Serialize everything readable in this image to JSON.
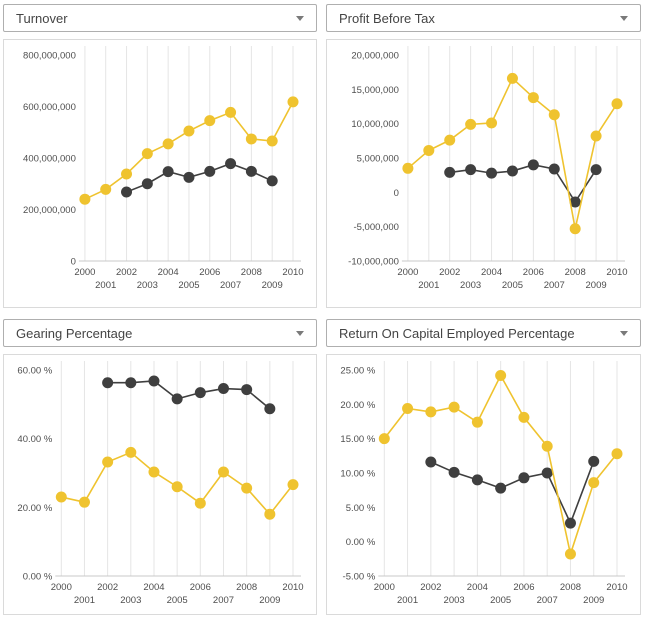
{
  "colors": {
    "series_yellow": "#EFC32F",
    "series_dark": "#3F3F3F",
    "gridline": "#E5E5E5",
    "axis_line": "#C8C8C8",
    "panel_border": "#DADADA",
    "dropdown_border": "#AFAFAF",
    "label_text": "#4E4E4E"
  },
  "panels": [
    {
      "dropdown_label": "Turnover"
    },
    {
      "dropdown_label": "Profit Before Tax"
    },
    {
      "dropdown_label": "Gearing Percentage"
    },
    {
      "dropdown_label": "Return On Capital Employed Percentage"
    }
  ],
  "chart_data": [
    {
      "type": "line",
      "title": "Turnover",
      "x": [
        2000,
        2001,
        2002,
        2003,
        2004,
        2005,
        2006,
        2007,
        2008,
        2009,
        2010
      ],
      "xtick_labels": [
        "2000",
        "2001",
        "2002",
        "2003",
        "2004",
        "2005",
        "2006",
        "2007",
        "2008",
        "2009",
        "2010"
      ],
      "series": [
        {
          "name": "series-yellow",
          "color": "#EFC32F",
          "values": [
            240000000,
            278000000,
            338000000,
            417000000,
            455000000,
            505000000,
            545000000,
            577000000,
            474000000,
            466000000,
            618000000
          ]
        },
        {
          "name": "series-dark",
          "color": "#3F3F3F",
          "values": [
            null,
            null,
            268000000,
            300000000,
            347000000,
            325000000,
            348000000,
            378000000,
            348000000,
            311000000,
            null
          ]
        }
      ],
      "ylim": [
        0,
        800000000
      ],
      "yticks": [
        {
          "v": 0,
          "label": "0"
        },
        {
          "v": 200000000,
          "label": "200,000,000"
        },
        {
          "v": 400000000,
          "label": "400,000,000"
        },
        {
          "v": 600000000,
          "label": "600,000,000"
        },
        {
          "v": 800000000,
          "label": "800,000,000"
        }
      ],
      "grid": "vertical",
      "legend": "none"
    },
    {
      "type": "line",
      "title": "Profit Before Tax",
      "x": [
        2000,
        2001,
        2002,
        2003,
        2004,
        2005,
        2006,
        2007,
        2008,
        2009,
        2010
      ],
      "xtick_labels": [
        "2000",
        "2001",
        "2002",
        "2003",
        "2004",
        "2005",
        "2006",
        "2007",
        "2008",
        "2009",
        "2010"
      ],
      "series": [
        {
          "name": "series-yellow",
          "color": "#EFC32F",
          "values": [
            3500000,
            6100000,
            7600000,
            9900000,
            10100000,
            16600000,
            13800000,
            11300000,
            -5300000,
            8200000,
            12900000
          ]
        },
        {
          "name": "series-dark",
          "color": "#3F3F3F",
          "values": [
            null,
            null,
            2900000,
            3300000,
            2800000,
            3100000,
            4000000,
            3400000,
            -1400000,
            3300000,
            null
          ]
        }
      ],
      "ylim": [
        -10000000,
        20000000
      ],
      "yticks": [
        {
          "v": -10000000,
          "label": "-10,000,000"
        },
        {
          "v": -5000000,
          "label": "-5,000,000"
        },
        {
          "v": 0,
          "label": "0"
        },
        {
          "v": 5000000,
          "label": "5,000,000"
        },
        {
          "v": 10000000,
          "label": "10,000,000"
        },
        {
          "v": 15000000,
          "label": "15,000,000"
        },
        {
          "v": 20000000,
          "label": "20,000,000"
        }
      ],
      "grid": "vertical",
      "legend": "none"
    },
    {
      "type": "line",
      "title": "Gearing Percentage",
      "x": [
        2000,
        2001,
        2002,
        2003,
        2004,
        2005,
        2006,
        2007,
        2008,
        2009,
        2010
      ],
      "xtick_labels": [
        "2000",
        "2001",
        "2002",
        "2003",
        "2004",
        "2005",
        "2006",
        "2007",
        "2008",
        "2009",
        "2010"
      ],
      "series": [
        {
          "name": "series-yellow",
          "color": "#EFC32F",
          "values": [
            23.0,
            21.5,
            33.2,
            36.0,
            30.3,
            26.0,
            21.2,
            30.3,
            25.6,
            18.0,
            26.6
          ]
        },
        {
          "name": "series-dark",
          "color": "#3F3F3F",
          "values": [
            null,
            null,
            56.3,
            56.3,
            56.8,
            51.6,
            53.4,
            54.6,
            54.3,
            48.7,
            null
          ]
        }
      ],
      "ylim": [
        0,
        60
      ],
      "yticks": [
        {
          "v": 0,
          "label": "0.00 %"
        },
        {
          "v": 20,
          "label": "20.00 %"
        },
        {
          "v": 40,
          "label": "40.00 %"
        },
        {
          "v": 60,
          "label": "60.00 %"
        }
      ],
      "grid": "vertical",
      "legend": "none"
    },
    {
      "type": "line",
      "title": "Return On Capital Employed Percentage",
      "x": [
        2000,
        2001,
        2002,
        2003,
        2004,
        2005,
        2006,
        2007,
        2008,
        2009,
        2010
      ],
      "xtick_labels": [
        "2000",
        "2001",
        "2002",
        "2003",
        "2004",
        "2005",
        "2006",
        "2007",
        "2008",
        "2009",
        "2010"
      ],
      "series": [
        {
          "name": "series-yellow",
          "color": "#EFC32F",
          "values": [
            15.0,
            19.4,
            18.9,
            19.6,
            17.4,
            24.2,
            18.1,
            13.9,
            -1.8,
            8.6,
            12.8
          ]
        },
        {
          "name": "series-dark",
          "color": "#3F3F3F",
          "values": [
            null,
            null,
            11.6,
            10.1,
            9.0,
            7.8,
            9.3,
            10.0,
            2.7,
            11.7,
            null
          ]
        }
      ],
      "ylim": [
        -5,
        25
      ],
      "yticks": [
        {
          "v": -5,
          "label": "-5.00 %"
        },
        {
          "v": 0,
          "label": "0.00 %"
        },
        {
          "v": 5,
          "label": "5.00 %"
        },
        {
          "v": 10,
          "label": "10.00 %"
        },
        {
          "v": 15,
          "label": "15.00 %"
        },
        {
          "v": 20,
          "label": "20.00 %"
        },
        {
          "v": 25,
          "label": "25.00 %"
        }
      ],
      "grid": "vertical",
      "legend": "none"
    }
  ]
}
